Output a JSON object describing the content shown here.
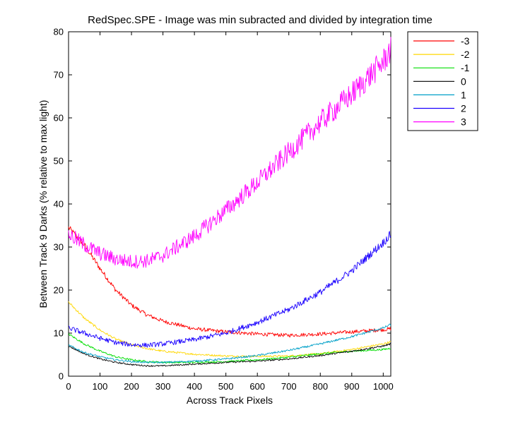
{
  "chart_data": {
    "type": "line",
    "title": "RedSpec.SPE - Image was min subracted and divided by integration time",
    "xlabel": "Across Track Pixels",
    "ylabel": "Between Track 9 Darks (% relative to max light)",
    "xlim": [
      0,
      1024
    ],
    "ylim": [
      0,
      80
    ],
    "xticks": [
      0,
      100,
      200,
      300,
      400,
      500,
      600,
      700,
      800,
      900,
      1000
    ],
    "yticks": [
      0,
      10,
      20,
      30,
      40,
      50,
      60,
      70,
      80
    ],
    "grid": false,
    "legend_position": "outside-top-right",
    "series": [
      {
        "name": "-3",
        "color": "#ff0000",
        "noise": 0.5,
        "x": [
          0,
          50,
          100,
          150,
          200,
          250,
          300,
          400,
          500,
          600,
          700,
          800,
          900,
          1000,
          1024
        ],
        "y": [
          34.5,
          30.5,
          25,
          20,
          16.5,
          14.2,
          12.8,
          11,
          10.3,
          9.8,
          9.5,
          9.8,
          10.3,
          10.8,
          11
        ]
      },
      {
        "name": "-2",
        "color": "#ffd700",
        "noise": 0.3,
        "x": [
          0,
          50,
          100,
          150,
          200,
          250,
          300,
          400,
          500,
          600,
          700,
          800,
          900,
          1000,
          1024
        ],
        "y": [
          17.2,
          13.5,
          10.7,
          8.6,
          7.3,
          6.4,
          5.8,
          5.1,
          4.7,
          4.6,
          4.7,
          5.2,
          6.2,
          7.5,
          8
        ]
      },
      {
        "name": "-1",
        "color": "#00dd00",
        "noise": 0.3,
        "x": [
          0,
          50,
          100,
          150,
          200,
          250,
          300,
          400,
          500,
          600,
          700,
          800,
          900,
          1000,
          1024
        ],
        "y": [
          9.8,
          7.5,
          5.8,
          4.5,
          3.8,
          3.4,
          3.2,
          3.2,
          3.4,
          3.8,
          4.4,
          5.2,
          5.8,
          6.2,
          6.5
        ]
      },
      {
        "name": "0",
        "color": "#000000",
        "noise": 0.25,
        "x": [
          0,
          50,
          100,
          150,
          200,
          250,
          300,
          400,
          500,
          600,
          700,
          800,
          900,
          1000,
          1024
        ],
        "y": [
          7,
          5.2,
          4,
          3.2,
          2.7,
          2.4,
          2.4,
          2.8,
          3.2,
          3.5,
          4,
          4.8,
          5.8,
          7,
          7.5
        ]
      },
      {
        "name": "1",
        "color": "#00a0c8",
        "noise": 0.3,
        "x": [
          0,
          50,
          100,
          150,
          200,
          250,
          300,
          400,
          500,
          600,
          700,
          800,
          900,
          1000,
          1024
        ],
        "y": [
          7.2,
          5.5,
          4.5,
          3.8,
          3.4,
          3.2,
          3.2,
          3.5,
          4,
          4.8,
          6,
          7.5,
          9.2,
          11.2,
          12
        ]
      },
      {
        "name": "2",
        "color": "#1a00ff",
        "noise": 0.7,
        "x": [
          0,
          50,
          100,
          150,
          200,
          250,
          300,
          400,
          500,
          600,
          700,
          800,
          900,
          1000,
          1024
        ],
        "y": [
          11.2,
          10,
          8.8,
          7.8,
          7.3,
          7.2,
          7.5,
          8.5,
          10,
          12.5,
          15.5,
          19.5,
          24.5,
          31,
          33
        ]
      },
      {
        "name": "3",
        "color": "#ff00ff",
        "noise": 1.3,
        "x": [
          0,
          50,
          100,
          150,
          200,
          250,
          300,
          400,
          500,
          600,
          700,
          800,
          900,
          1000,
          1024
        ],
        "y": [
          33,
          30.5,
          28.5,
          27.2,
          26.6,
          26.8,
          28,
          32.5,
          38.5,
          45,
          52,
          59,
          65.5,
          73,
          76
        ]
      }
    ]
  }
}
